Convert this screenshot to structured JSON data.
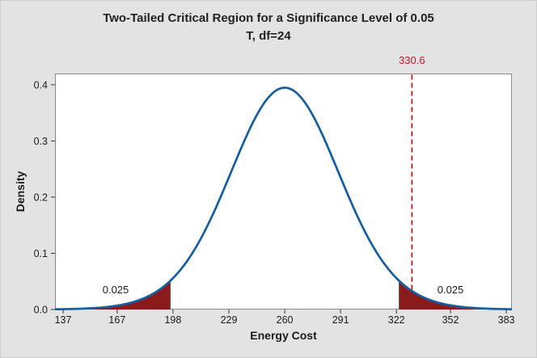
{
  "chart_data": {
    "type": "area",
    "title": "Two-Tailed Critical Region for a Significance Level of 0.05",
    "subtitle": "T, df=24",
    "xlabel": "Energy Cost",
    "ylabel": "Density",
    "distribution": {
      "name": "t",
      "df": 24,
      "mean": 260,
      "scale": 30.75
    },
    "significance_level": 0.05,
    "two_tailed": true,
    "tail_probabilities": {
      "left": "0.025",
      "right": "0.025"
    },
    "critical_values": [
      196.5,
      323.5
    ],
    "reference_line": {
      "value": 330.6,
      "label": "330.6",
      "style": "dashed"
    },
    "x_ticks": [
      "137",
      "167",
      "198",
      "229",
      "260",
      "291",
      "322",
      "352",
      "383"
    ],
    "x_tick_values": [
      137,
      167,
      198,
      229,
      260,
      291,
      322,
      352,
      383
    ],
    "y_ticks": [
      "0.0",
      "0.1",
      "0.2",
      "0.3",
      "0.4"
    ],
    "y_tick_values": [
      0.0,
      0.1,
      0.2,
      0.3,
      0.4
    ],
    "xlim": [
      132.5,
      386.1
    ],
    "ylim": [
      0,
      0.42
    ],
    "grid": false,
    "legend": "none",
    "colors": {
      "curve": "#155fa0",
      "tail_fill": "#8b1a1b",
      "tail_edge": "#5a5a5a",
      "reference_line": "#c00000",
      "reference_label": "#a81e29",
      "plot_bg": "#ffffff",
      "frame": "#8c8c8c",
      "tick": "#333333",
      "background": "#e3e3e3",
      "text": "#1a1a1a"
    }
  }
}
